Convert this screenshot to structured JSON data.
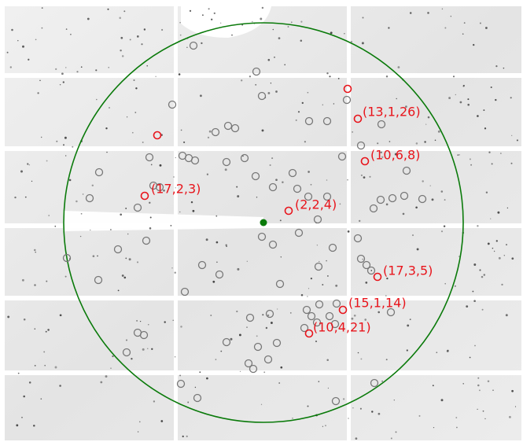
{
  "annotations": [
    "(13,1,26)",
    "(10,6,8)",
    "(17,2,3)",
    "(2,2,4)",
    "(17,3,5)",
    "(15,1,14)",
    "(10,4,21)"
  ]
}
